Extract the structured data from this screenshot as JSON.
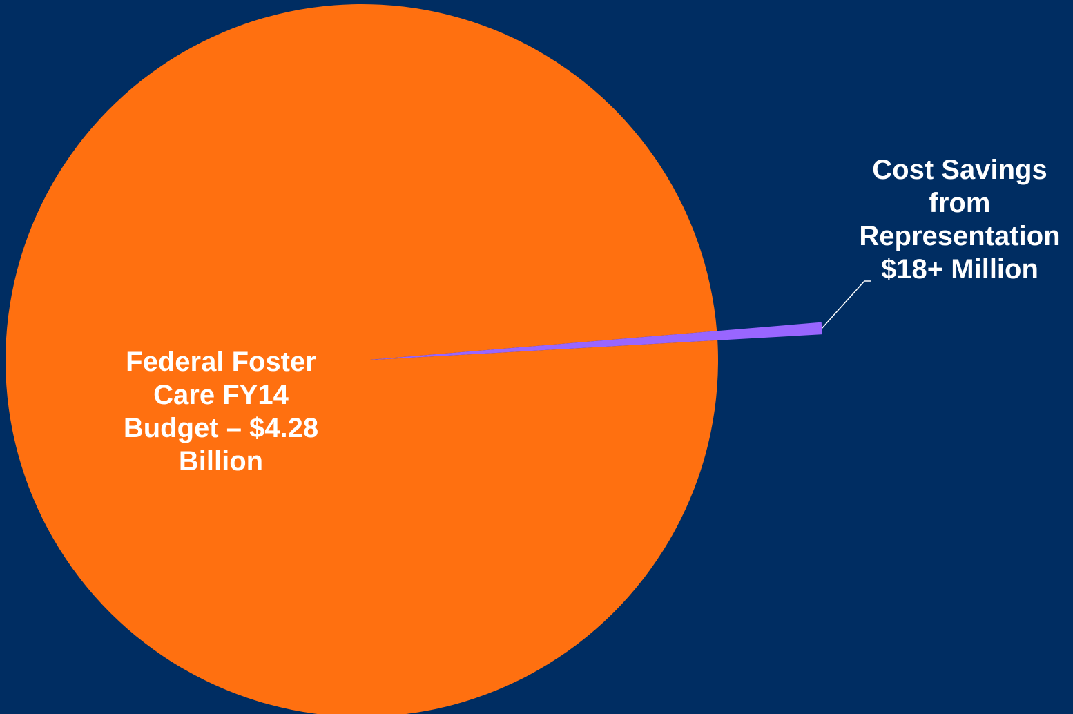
{
  "colors": {
    "background": "#002D62",
    "budget_slice": "#FF7010",
    "savings_slice": "#9966FF",
    "leader_line": "#FFFFFF",
    "label_text": "#FFFFFF"
  },
  "chart_data": {
    "type": "pie",
    "title": "",
    "slices": [
      {
        "name": "Federal Foster Care FY14 Budget – $4.28 Billion",
        "value": 4280,
        "unit": "million USD",
        "label_lines": [
          "Federal Foster",
          "Care FY14",
          "Budget – $4.28",
          "Billion"
        ],
        "color": "#FF7010"
      },
      {
        "name": "Cost Savings from Representation $18+ Million",
        "value": 18,
        "unit": "million USD",
        "label_lines": [
          "Cost Savings",
          "from",
          "Representation",
          "$18+ Million"
        ],
        "color": "#9966FF",
        "exploded": true
      }
    ],
    "legend": "none"
  }
}
